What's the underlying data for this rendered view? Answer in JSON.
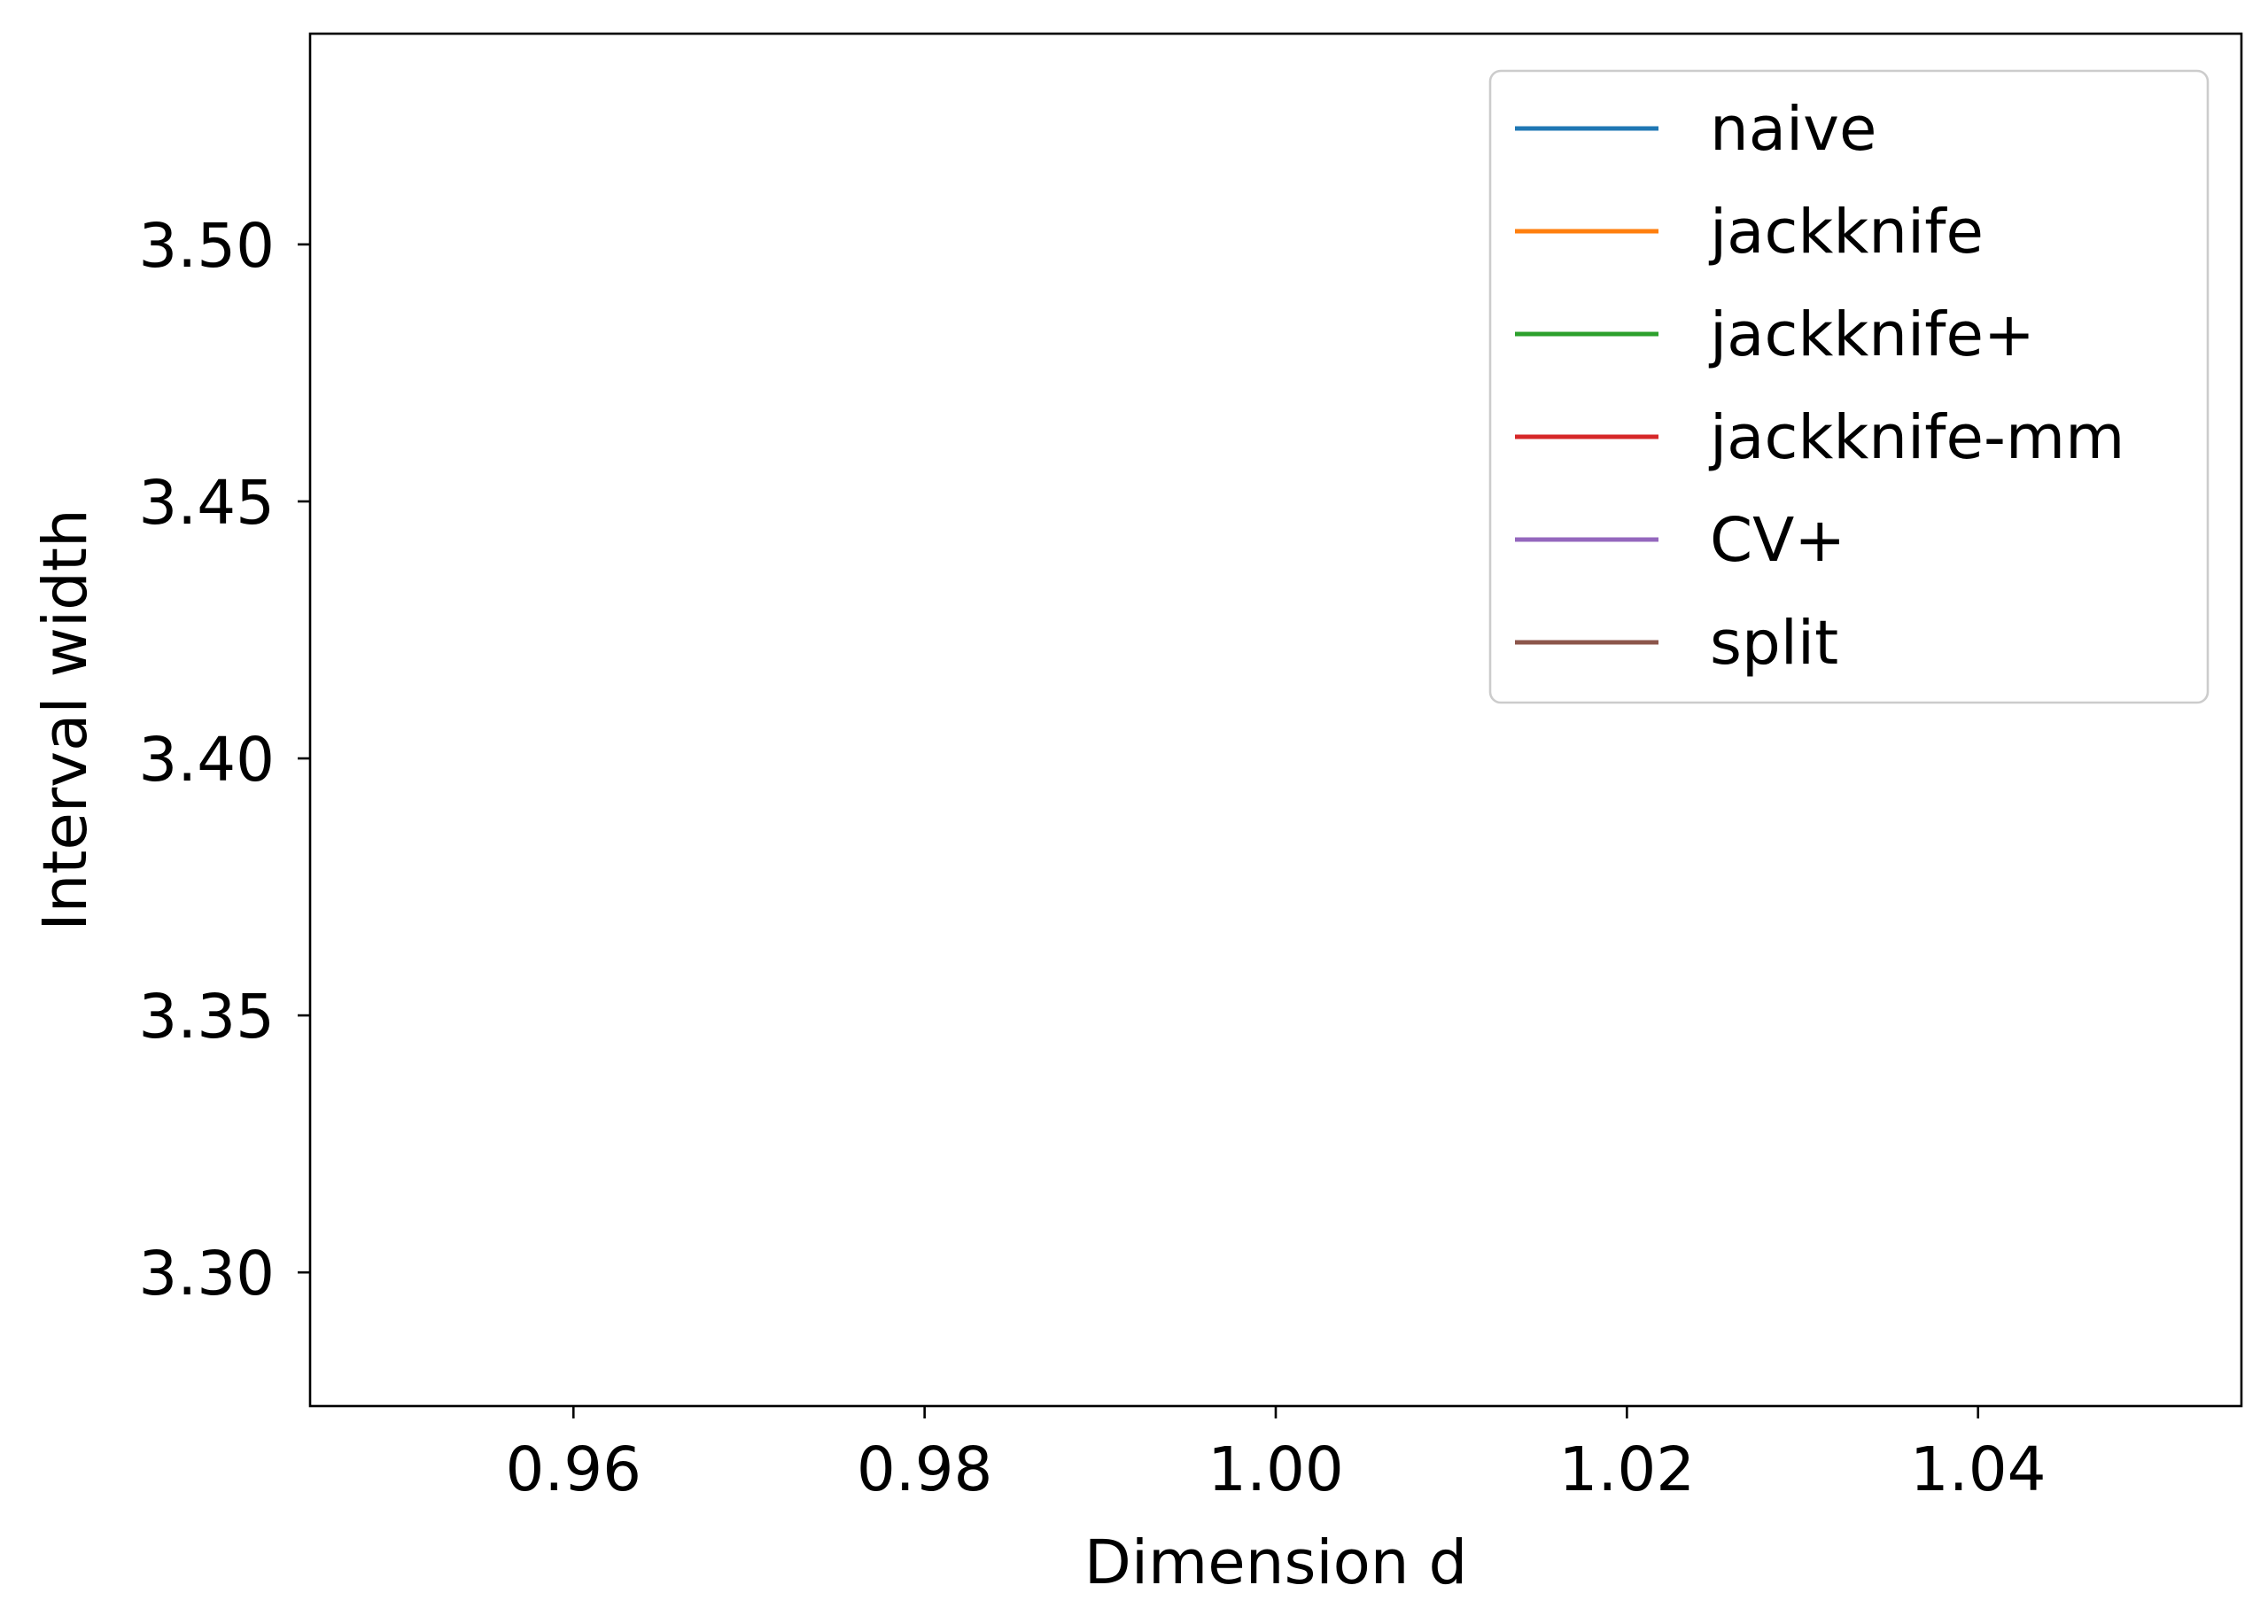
{
  "chart_data": {
    "type": "line",
    "title": "",
    "xlabel": "Dimension d",
    "ylabel": "Interval width",
    "xlim": [
      0.945,
      1.055
    ],
    "ylim": [
      3.274,
      3.541
    ],
    "xticks": [
      0.96,
      0.98,
      1.0,
      1.02,
      1.04
    ],
    "xtick_labels": [
      "0.96",
      "0.98",
      "1.00",
      "1.02",
      "1.04"
    ],
    "yticks": [
      3.3,
      3.35,
      3.4,
      3.45,
      3.5
    ],
    "ytick_labels": [
      "3.30",
      "3.35",
      "3.40",
      "3.45",
      "3.50"
    ],
    "grid": false,
    "legend_position": "top-right",
    "series": [
      {
        "name": "naive",
        "color": "#1f77b4",
        "x": [],
        "y": []
      },
      {
        "name": "jackknife",
        "color": "#ff7f0e",
        "x": [],
        "y": []
      },
      {
        "name": "jackknife+",
        "color": "#2ca02c",
        "x": [],
        "y": []
      },
      {
        "name": "jackknife-mm",
        "color": "#d62728",
        "x": [],
        "y": []
      },
      {
        "name": "CV+",
        "color": "#9467bd",
        "x": [],
        "y": []
      },
      {
        "name": "split",
        "color": "#8c564b",
        "x": [],
        "y": []
      }
    ]
  }
}
